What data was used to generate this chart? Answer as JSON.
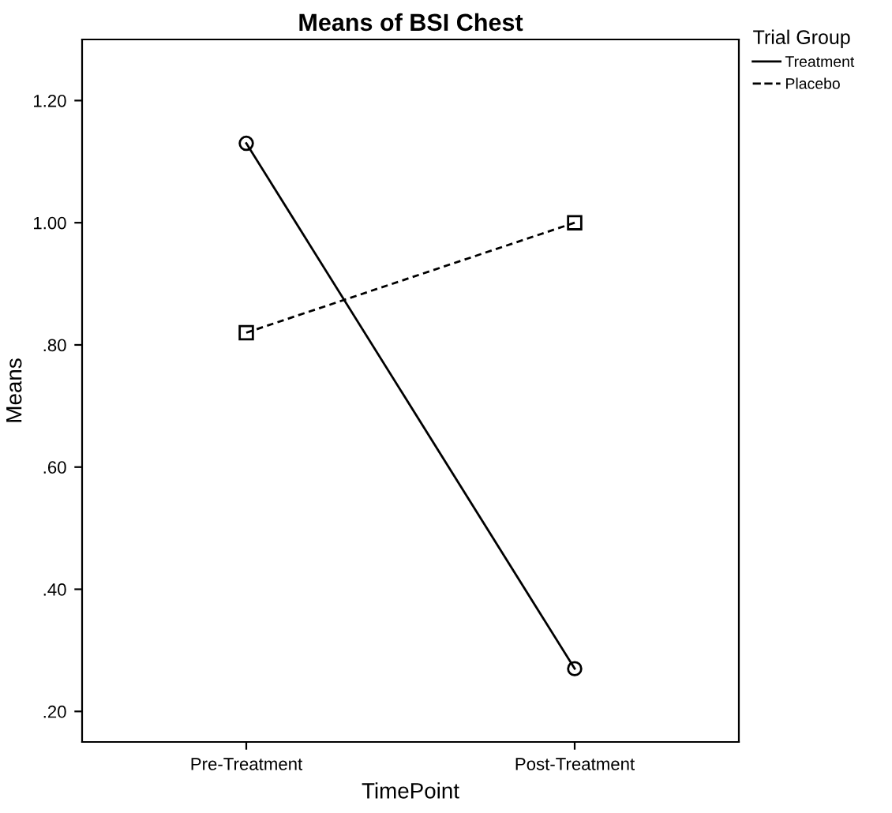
{
  "chart_data": {
    "type": "line",
    "title": "Means of BSI Chest",
    "xlabel": "TimePoint",
    "ylabel": "Means",
    "legend_title": "Trial Group",
    "categories": [
      "Pre-Treatment",
      "Post-Treatment"
    ],
    "series": [
      {
        "name": "Treatment",
        "color": "#000000",
        "values": [
          1.13,
          0.27
        ],
        "marker": "circle",
        "line_style": "solid"
      },
      {
        "name": "Placebo",
        "color": "#000000",
        "values": [
          0.82,
          1.0
        ],
        "marker": "square",
        "line_style": "dashed"
      }
    ],
    "ylim": [
      0.15,
      1.3
    ],
    "yticks": [
      {
        "value": 0.2,
        "label": ".20"
      },
      {
        "value": 0.4,
        "label": ".40"
      },
      {
        "value": 0.6,
        "label": ".60"
      },
      {
        "value": 0.8,
        "label": ".80"
      },
      {
        "value": 1.0,
        "label": "1.00"
      },
      {
        "value": 1.2,
        "label": "1.20"
      }
    ],
    "grid": false,
    "legend": "top right"
  }
}
